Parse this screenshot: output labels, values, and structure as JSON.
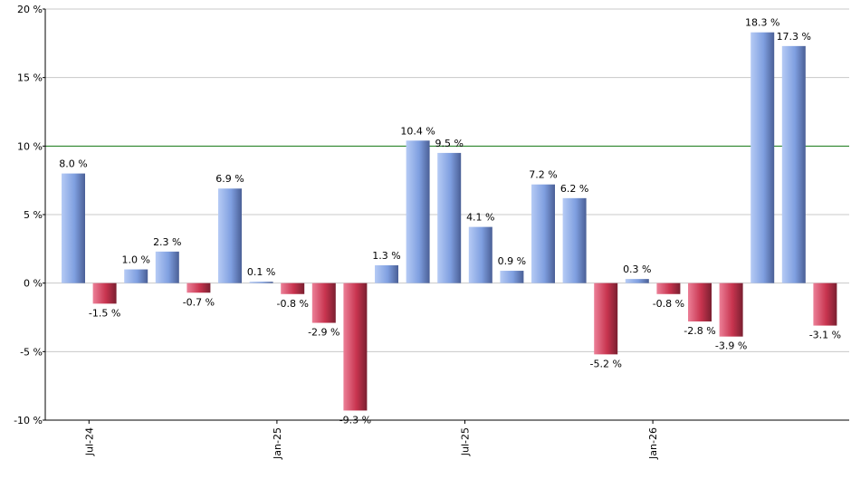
{
  "chart_data": {
    "type": "bar",
    "title": "",
    "xlabel": "",
    "ylabel": "",
    "ylim": [
      -10,
      20
    ],
    "yticks": [
      {
        "value": 20,
        "label": "20 %"
      },
      {
        "value": 15,
        "label": "15 %"
      },
      {
        "value": 10,
        "label": "10 %"
      },
      {
        "value": 5,
        "label": "5 %"
      },
      {
        "value": 0,
        "label": "0 %"
      },
      {
        "value": -5,
        "label": "-5 %"
      },
      {
        "value": -10,
        "label": "-10 %"
      }
    ],
    "xticks": [
      {
        "index": 1,
        "label": "Jul-24"
      },
      {
        "index": 7,
        "label": "Jan-25"
      },
      {
        "index": 13,
        "label": "Jul-25"
      },
      {
        "index": 19,
        "label": "Jan-26"
      }
    ],
    "grid": true,
    "reference_line": {
      "value": 10,
      "color": "#1a7f1a"
    },
    "colors": {
      "positive": "#7f9fe0",
      "negative": "#c8344f",
      "grid": "#c8c8c8",
      "axis": "#000000"
    },
    "values": [
      8.0,
      -1.5,
      1.0,
      2.3,
      -0.7,
      6.9,
      0.1,
      -0.8,
      -2.9,
      -9.3,
      1.3,
      10.4,
      9.5,
      4.1,
      0.9,
      7.2,
      6.2,
      -5.2,
      0.3,
      -0.8,
      -2.8,
      -3.9,
      18.3,
      17.3,
      -3.1
    ],
    "labels": [
      "8.0 %",
      "-1.5 %",
      "1.0 %",
      "2.3 %",
      "-0.7 %",
      "6.9 %",
      "0.1 %",
      "-0.8 %",
      "-2.9 %",
      "-9.3 %",
      "1.3 %",
      "10.4 %",
      "9.5 %",
      "4.1 %",
      "0.9 %",
      "7.2 %",
      "6.2 %",
      "-5.2 %",
      "0.3 %",
      "-0.8 %",
      "-2.8 %",
      "-3.9 %",
      "18.3 %",
      "17.3 %",
      "-3.1 %"
    ]
  }
}
